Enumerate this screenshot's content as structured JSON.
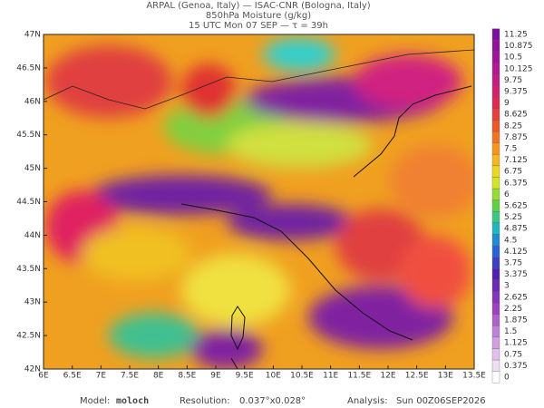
{
  "header": {
    "line1": "ARPAL (Genoa, Italy)  —  ISAC-CNR (Bologna, Italy)",
    "line2": "850hPa Moisture (g/kg)",
    "line3": "15 UTC Mon 07 SEP  —  τ = 39h"
  },
  "map": {
    "x_labels": [
      "6E",
      "6.5E",
      "7E",
      "7.5E",
      "8E",
      "8.5E",
      "9E",
      "9.5E",
      "10E",
      "10.5E",
      "11E",
      "11.5E",
      "12E",
      "12.5E",
      "13E",
      "13.5E"
    ],
    "y_labels": [
      "47N",
      "46.5N",
      "46N",
      "45.5N",
      "45N",
      "44.5N",
      "44N",
      "43.5N",
      "43N",
      "42.5N",
      "42N"
    ]
  },
  "colorbar": {
    "labels": [
      "11.25",
      "10.875",
      "10.5",
      "10.125",
      "9.75",
      "9.375",
      "9",
      "8.625",
      "8.25",
      "7.875",
      "7.5",
      "7.125",
      "6.75",
      "6.375",
      "6",
      "5.625",
      "5.25",
      "4.875",
      "4.5",
      "4.125",
      "3.75",
      "3.375",
      "3",
      "2.625",
      "2.25",
      "1.875",
      "1.5",
      "1.125",
      "0.75",
      "0.375",
      "0"
    ]
  },
  "footer": {
    "model_label": "Model:",
    "model": "moloch",
    "resolution_label": "Resolution:",
    "resolution": "0.037°x0.028°",
    "analysis_label": "Analysis:",
    "analysis": "Sun 00Z06SEP2026"
  }
}
